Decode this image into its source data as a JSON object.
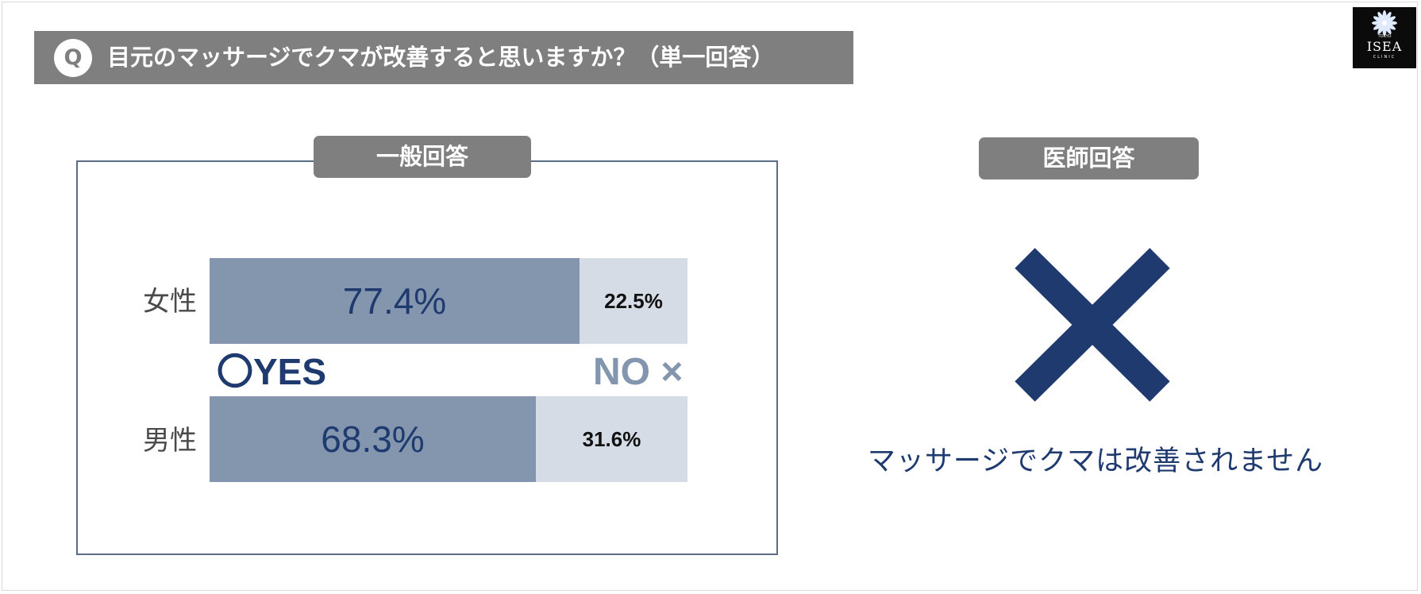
{
  "question": {
    "badge": "Q",
    "text": "目元のマッサージでクマが改善すると思いますか？（単一回答）"
  },
  "logo": {
    "top_text": "TOKYO",
    "main_text": "ISEA",
    "bottom_text": "CLINIC"
  },
  "general_panel": {
    "title": "一般回答"
  },
  "doctor_panel": {
    "title": "医師回答",
    "icon": "cross-mark",
    "answer": "マッサージでクマは改善されません"
  },
  "legend": {
    "yes": "〇YES",
    "no": "NO ×"
  },
  "colors": {
    "yes_bar": "#8496ae",
    "no_bar": "#d6dce6",
    "accent_navy": "#1f3a6e",
    "header_gray": "#7f7f7f"
  },
  "chart_data": {
    "type": "bar",
    "orientation": "horizontal",
    "stacked": true,
    "categories": [
      "女性",
      "男性"
    ],
    "series": [
      {
        "name": "〇YES",
        "values": [
          77.4,
          68.3
        ],
        "labels": [
          "77.4%",
          "68.3%"
        ]
      },
      {
        "name": "NO ×",
        "values": [
          22.5,
          31.6
        ],
        "labels": [
          "22.5%",
          "31.6%"
        ]
      }
    ],
    "xlim": [
      0,
      100
    ],
    "grid": false,
    "legend_position": "between-bars"
  }
}
